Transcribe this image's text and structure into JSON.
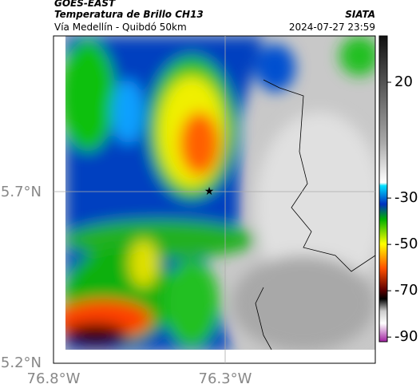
{
  "header": {
    "title": "GOES-EAST",
    "subtitle": "Temperatura de Brillo CH13",
    "region": "Vía Medellín - Quibdó 50km",
    "source": "SIATA",
    "timestamp": "2024-07-27 23:59"
  },
  "map": {
    "lat_ticks": [
      "5.7°N",
      "5.2°N"
    ],
    "lon_ticks": [
      "76.8°W",
      "76.3°W"
    ]
  },
  "colorbar": {
    "lim": [
      40,
      -92
    ],
    "ticks": [
      20,
      -30,
      -50,
      -70,
      -90
    ]
  }
}
